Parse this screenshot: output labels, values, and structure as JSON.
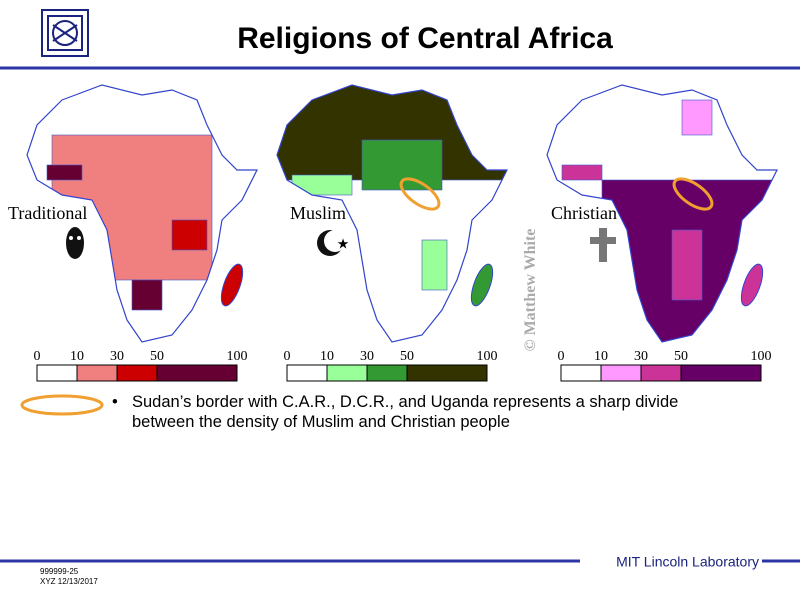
{
  "header": {
    "title": "Religions of Central Africa"
  },
  "maps": [
    {
      "label": "Traditional",
      "legend": {
        "ticks": [
          0,
          10,
          30,
          50,
          100
        ],
        "colors": [
          "#ffffff",
          "#f08080",
          "#cc0000",
          "#660033"
        ]
      }
    },
    {
      "label": "Muslim",
      "legend": {
        "ticks": [
          0,
          10,
          30,
          50,
          100
        ],
        "colors": [
          "#ffffff",
          "#99ff99",
          "#339933",
          "#333300"
        ]
      }
    },
    {
      "label": "Christian",
      "legend": {
        "ticks": [
          0,
          10,
          30,
          50,
          100
        ],
        "colors": [
          "#ffffff",
          "#ff99ff",
          "#cc3399",
          "#660066"
        ]
      }
    }
  ],
  "watermark": "© Matthew White",
  "bullets": [
    "Sudan’s border with C.A.R., D.C.R., and Uganda represents a sharp divide between the density of Muslim and Christian people"
  ],
  "footer": {
    "id": "999999-25",
    "date": "XYZ 12/13/2017",
    "lab": "MIT Lincoln Laboratory"
  }
}
